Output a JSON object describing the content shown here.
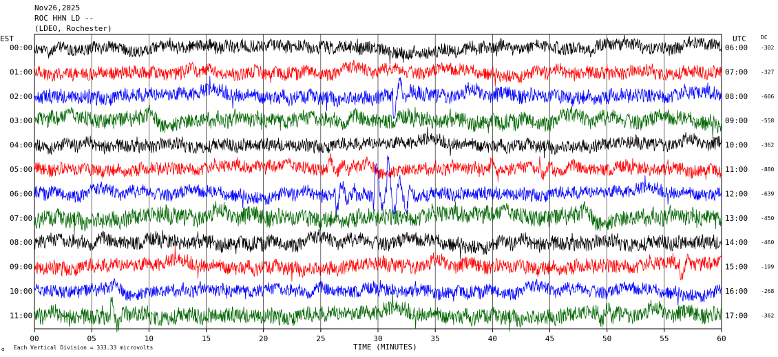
{
  "header": {
    "date": "Nov26,2025",
    "station": "ROC HHN LD --",
    "network": "(LDEO, Rochester)"
  },
  "left_zone_label": "EST",
  "right_zone_label": "UTC",
  "dc_label": "DC",
  "xaxis_label": "TIME (MINUTES)",
  "scale_note": "Each Vertical Division = 333.33 microvolts",
  "chart_data": {
    "type": "line",
    "title": "ROC HHN LD --",
    "xlabel": "TIME (MINUTES)",
    "xlim": [
      0,
      60
    ],
    "xticks": [
      "00",
      "05",
      "10",
      "15",
      "20",
      "25",
      "30",
      "35",
      "40",
      "45",
      "50",
      "55",
      "60"
    ],
    "colors": [
      "#000000",
      "#ff0000",
      "#0000ff",
      "#006600"
    ],
    "rows": [
      {
        "est": "00:00",
        "utc": "06:00",
        "dc": "-302",
        "color": "#000000",
        "amp": 9,
        "events": []
      },
      {
        "est": "01:00",
        "utc": "07:00",
        "dc": "-327",
        "color": "#ff0000",
        "amp": 9,
        "events": []
      },
      {
        "est": "02:00",
        "utc": "08:00",
        "dc": "-606",
        "color": "#0000ff",
        "amp": 10,
        "events": [
          {
            "t": 31.5,
            "a": 30
          }
        ]
      },
      {
        "est": "03:00",
        "utc": "09:00",
        "dc": "-558",
        "color": "#006600",
        "amp": 11,
        "events": []
      },
      {
        "est": "04:00",
        "utc": "10:00",
        "dc": "-362",
        "color": "#000000",
        "amp": 9,
        "events": []
      },
      {
        "est": "05:00",
        "utc": "11:00",
        "dc": "-880",
        "color": "#ff0000",
        "amp": 9,
        "events": [
          {
            "t": 25.8,
            "a": 18
          },
          {
            "t": 40,
            "a": 12
          },
          {
            "t": 44.3,
            "a": 15
          }
        ]
      },
      {
        "est": "06:00",
        "utc": "12:00",
        "dc": "-639",
        "color": "#0000ff",
        "amp": 9,
        "events": [
          {
            "t": 26.5,
            "a": 25
          },
          {
            "t": 29.8,
            "a": 45
          },
          {
            "t": 31,
            "a": 40
          },
          {
            "t": 32.5,
            "a": 20
          }
        ]
      },
      {
        "est": "07:00",
        "utc": "13:00",
        "dc": "-450",
        "color": "#006600",
        "amp": 12,
        "events": []
      },
      {
        "est": "08:00",
        "utc": "14:00",
        "dc": "-460",
        "color": "#000000",
        "amp": 10,
        "events": []
      },
      {
        "est": "09:00",
        "utc": "15:00",
        "dc": "-199",
        "color": "#ff0000",
        "amp": 10,
        "events": [
          {
            "t": 56.5,
            "a": 20
          }
        ]
      },
      {
        "est": "10:00",
        "utc": "16:00",
        "dc": "-268",
        "color": "#0000ff",
        "amp": 9,
        "events": []
      },
      {
        "est": "11:00",
        "utc": "17:00",
        "dc": "-362",
        "color": "#006600",
        "amp": 11,
        "events": [
          {
            "t": 6.8,
            "a": 20
          },
          {
            "t": 49.5,
            "a": 18
          }
        ]
      }
    ]
  }
}
